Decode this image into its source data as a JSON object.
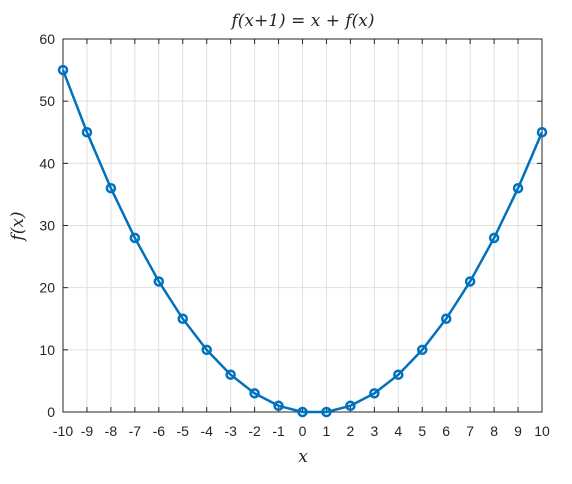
{
  "chart_data": {
    "type": "line",
    "title": "f(x+1) = x + f(x)",
    "xlabel": "x",
    "ylabel": "f(x)",
    "xlim": [
      -10,
      10
    ],
    "ylim": [
      0,
      60
    ],
    "xticks": [
      -10,
      -9,
      -8,
      -7,
      -6,
      -5,
      -4,
      -3,
      -2,
      -1,
      0,
      1,
      2,
      3,
      4,
      5,
      6,
      7,
      8,
      9,
      10
    ],
    "yticks": [
      0,
      10,
      20,
      30,
      40,
      50,
      60
    ],
    "grid": true,
    "legend": "none",
    "marker": "circle",
    "series": [
      {
        "color": "#0072BD",
        "x": [
          -10,
          -9,
          -8,
          -7,
          -6,
          -5,
          -4,
          -3,
          -2,
          -1,
          0,
          1,
          2,
          3,
          4,
          5,
          6,
          7,
          8,
          9,
          10
        ],
        "y": [
          55,
          45,
          36,
          28,
          21,
          15,
          10,
          6,
          3,
          1,
          0,
          0,
          1,
          3,
          6,
          10,
          15,
          21,
          28,
          36,
          45
        ]
      }
    ]
  }
}
